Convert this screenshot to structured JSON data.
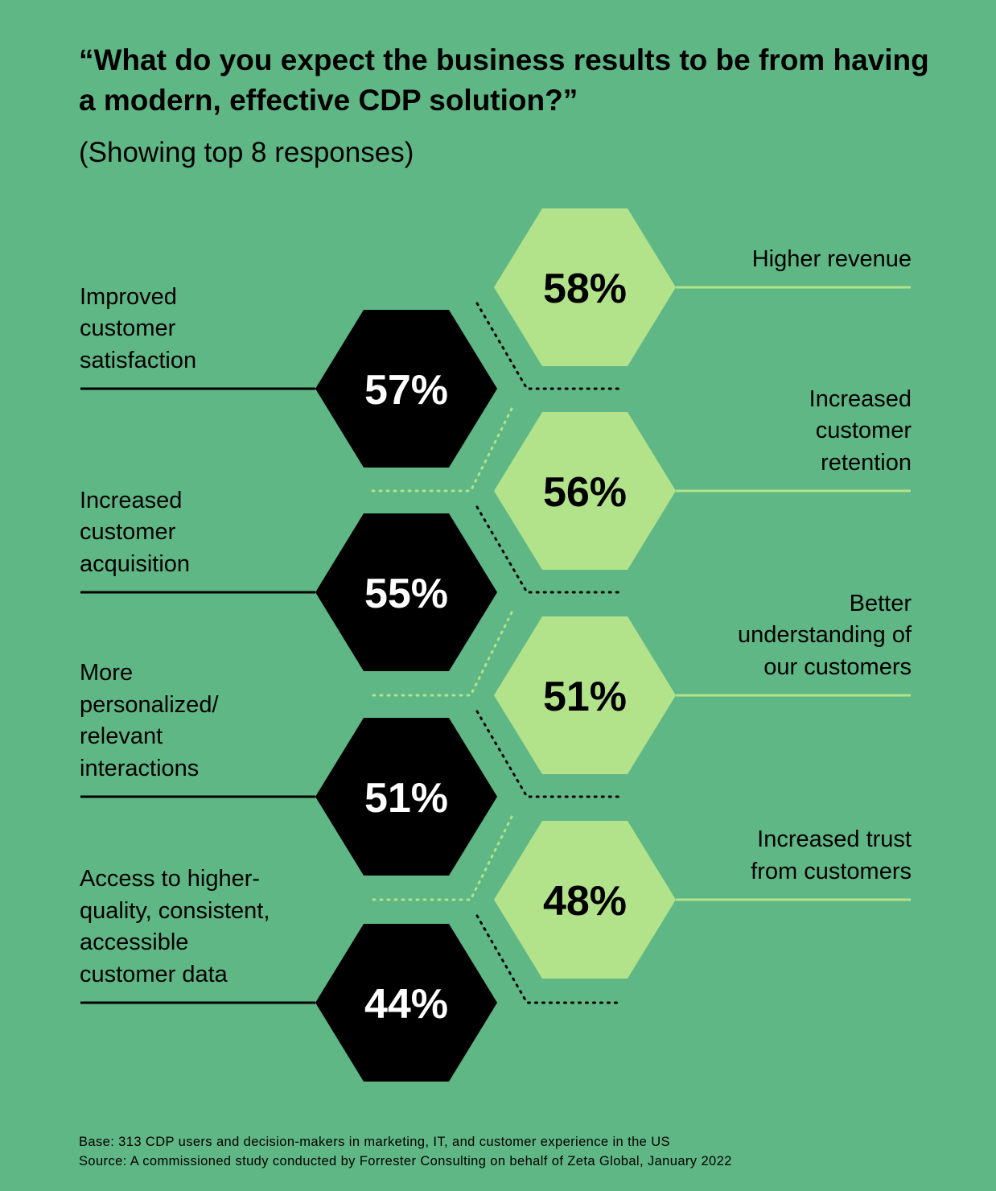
{
  "title": "“What do you expect the business results to be from having a modern, effective CDP solution?”",
  "subtitle": "(Showing top 8 responses)",
  "colors": {
    "background": "#5fb785",
    "light_hex": "#b2e38a",
    "dark_hex": "#000000",
    "light_line": "#b2e38a",
    "dark_line": "#000000"
  },
  "chart_data": {
    "type": "bar",
    "unit": "%",
    "categories": [
      "Higher revenue",
      "Improved customer satisfaction",
      "Increased customer retention",
      "Increased customer acquisition",
      "Better understanding of our customers",
      "More personalized/ relevant interactions",
      "Increased trust from customers",
      "Access to higher-quality, consistent, accessible customer data"
    ],
    "values": [
      58,
      57,
      56,
      55,
      51,
      51,
      48,
      44
    ],
    "labels": [
      "58%",
      "57%",
      "56%",
      "55%",
      "51%",
      "51%",
      "48%",
      "44%"
    ]
  },
  "items": [
    {
      "label_lines": [
        "Higher revenue"
      ],
      "value": "58%"
    },
    {
      "label_lines": [
        "Improved",
        "customer",
        "satisfaction"
      ],
      "value": "57%"
    },
    {
      "label_lines": [
        "Increased",
        "customer",
        "retention"
      ],
      "value": "56%"
    },
    {
      "label_lines": [
        "Increased",
        "customer",
        "acquisition"
      ],
      "value": "55%"
    },
    {
      "label_lines": [
        "Better",
        "understanding of",
        "our customers"
      ],
      "value": "51%"
    },
    {
      "label_lines": [
        "More",
        "personalized/",
        "relevant",
        "interactions"
      ],
      "value": "51%"
    },
    {
      "label_lines": [
        "Increased trust",
        "from customers"
      ],
      "value": "48%"
    },
    {
      "label_lines": [
        "Access to higher-",
        "quality, consistent,",
        "accessible",
        "customer data"
      ],
      "value": "44%"
    }
  ],
  "footnotes": {
    "base": "Base: 313 CDP users and decision-makers in marketing, IT, and customer experience in the US",
    "source": "Source: A commissioned study conducted by Forrester Consulting on behalf of Zeta Global, January 2022"
  }
}
